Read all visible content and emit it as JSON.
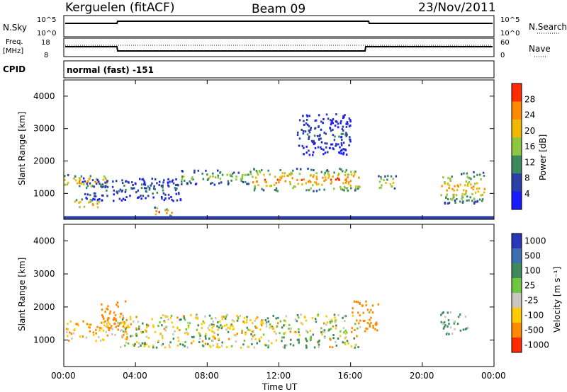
{
  "header": {
    "title": "Kerguelen (fitACF)",
    "beam": "Beam 09",
    "date": "23/Nov/2011"
  },
  "nsky_panel": {
    "left_label": "N.Sky",
    "right_label": "N.Search",
    "left_ticks": [
      "10^5",
      "10^0"
    ],
    "right_ticks": [
      "10^5",
      "10^0"
    ]
  },
  "freq_panel": {
    "left_label_1": "Freq.",
    "left_label_2": "[MHz]",
    "right_label": "Nave",
    "left_ticks": [
      "18",
      "8"
    ],
    "right_ticks": [
      "60",
      "0"
    ]
  },
  "cpid": {
    "label": "CPID",
    "text": "normal (fast) -151"
  },
  "power_panel": {
    "ylabel": "Slant Range [km]",
    "yticks": [
      "1000",
      "2000",
      "3000",
      "4000"
    ],
    "colorbar_label": "Power [dB]",
    "colorbar_ticks": [
      "4",
      "8",
      "12",
      "16",
      "20",
      "24",
      "28"
    ],
    "colors": [
      "#1a1aff",
      "#2b3fa8",
      "#3b8a5e",
      "#8fc63f",
      "#f0b800",
      "#ff8a00",
      "#ff2a00"
    ]
  },
  "velocity_panel": {
    "ylabel": "Slant Range [km]",
    "yticks": [
      "1000",
      "2000",
      "3000",
      "4000"
    ],
    "colorbar_label": "Velocity [m s⁻¹]",
    "colorbar_ticks": [
      "1000",
      "500",
      "100",
      "25",
      "-25",
      "-100",
      "-500",
      "-1000"
    ],
    "colors": [
      "#2a36b8",
      "#3b6fb0",
      "#3f8a5a",
      "#6fc63f",
      "#c8c8c0",
      "#ffcc00",
      "#ff8a00",
      "#ff2a00"
    ]
  },
  "xaxis": {
    "label": "Time UT",
    "ticks": [
      "00:00",
      "04:00",
      "08:00",
      "12:00",
      "16:00",
      "20:00",
      "00:00"
    ]
  },
  "chart_data": [
    {
      "type": "heatmap",
      "name": "Power",
      "x_range_hours": [
        0,
        24
      ],
      "y_range_km": [
        200,
        4500
      ],
      "colorbar_range_db": [
        0,
        32
      ],
      "blobs": [
        {
          "t": [
            0.0,
            2.5
          ],
          "r": [
            1200,
            1600
          ],
          "value_db": 26
        },
        {
          "t": [
            0.5,
            2.0
          ],
          "r": [
            550,
            850
          ],
          "value_db": 28
        },
        {
          "t": [
            1.0,
            6.5
          ],
          "r": [
            800,
            1500
          ],
          "value_db": 10
        },
        {
          "t": [
            5.0,
            6.0
          ],
          "r": [
            300,
            600
          ],
          "value_db": 28
        },
        {
          "t": [
            6.5,
            10.5
          ],
          "r": [
            1300,
            1750
          ],
          "value_db": 18
        },
        {
          "t": [
            10.5,
            16.5
          ],
          "r": [
            1100,
            1800
          ],
          "value_db": 28
        },
        {
          "t": [
            13.0,
            16.0
          ],
          "r": [
            2200,
            3500
          ],
          "value_db": 8
        },
        {
          "t": [
            17.5,
            18.5
          ],
          "r": [
            1100,
            1600
          ],
          "value_db": 22
        },
        {
          "t": [
            21.0,
            23.5
          ],
          "r": [
            700,
            1700
          ],
          "value_db": 24
        }
      ]
    },
    {
      "type": "heatmap",
      "name": "Velocity",
      "x_range_hours": [
        0,
        24
      ],
      "y_range_km": [
        200,
        4500
      ],
      "blobs": [
        {
          "t": [
            0.0,
            3.5
          ],
          "r": [
            1000,
            1600
          ],
          "value_ms": -100
        },
        {
          "t": [
            2.0,
            3.5
          ],
          "r": [
            1300,
            2200
          ],
          "value_ms": -300
        },
        {
          "t": [
            3.0,
            16.5
          ],
          "r": [
            800,
            1800
          ],
          "value_ms": 0
        },
        {
          "t": [
            16.0,
            17.5
          ],
          "r": [
            1300,
            2200
          ],
          "value_ms": -300
        },
        {
          "t": [
            21.0,
            22.5
          ],
          "r": [
            1200,
            1900
          ],
          "value_ms": 100
        }
      ]
    }
  ]
}
